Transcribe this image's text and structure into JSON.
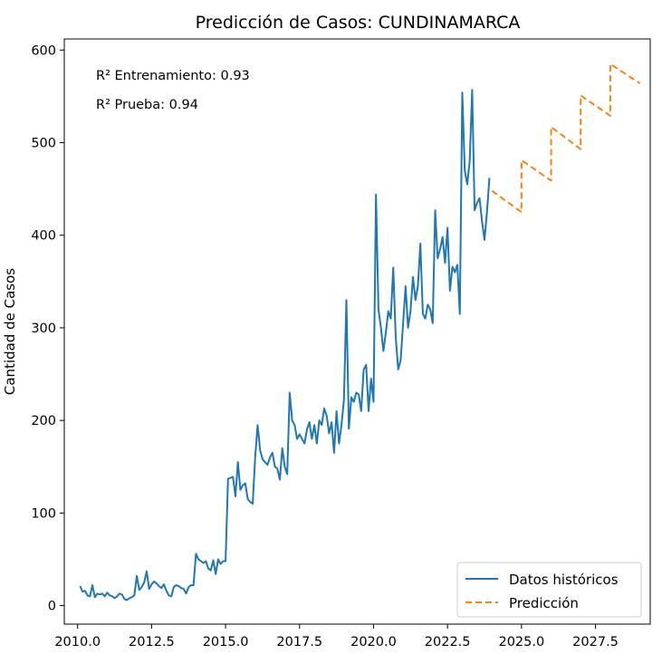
{
  "chart_data": {
    "type": "line",
    "title": "Predicción de Casos: CUNDINAMARCA",
    "xlabel": "",
    "ylabel": "Cantidad de Casos",
    "xlim": [
      2009.55,
      2029.35
    ],
    "ylim": [
      -20,
      612
    ],
    "x_ticks": [
      2010.0,
      2012.5,
      2015.0,
      2017.5,
      2020.0,
      2022.5,
      2025.0,
      2027.5
    ],
    "x_tick_labels": [
      "2010.0",
      "2012.5",
      "2015.0",
      "2017.5",
      "2020.0",
      "2022.5",
      "2025.0",
      "2027.5"
    ],
    "y_ticks": [
      0,
      100,
      200,
      300,
      400,
      500,
      600
    ],
    "y_tick_labels": [
      "0",
      "100",
      "200",
      "300",
      "400",
      "500",
      "600"
    ],
    "grid": false,
    "legend_position": "lower right",
    "annotations": [
      "R² Entrenamiento: 0.93",
      "R² Prueba: 0.94"
    ],
    "series": [
      {
        "name": "Datos históricos",
        "color": "#1f77b4",
        "style": "solid",
        "x_start": 2010.0833,
        "x_step": 0.08333,
        "values": [
          21,
          15,
          16,
          11,
          10,
          22,
          9,
          13,
          12,
          13,
          10,
          14,
          11,
          10,
          8,
          10,
          13,
          12,
          7,
          6,
          8,
          9,
          11,
          32,
          17,
          20,
          25,
          37,
          18,
          23,
          26,
          24,
          21,
          19,
          23,
          16,
          11,
          10,
          20,
          22,
          21,
          19,
          18,
          13,
          20,
          22,
          22,
          56,
          50,
          48,
          46,
          48,
          40,
          38,
          49,
          34,
          50,
          45,
          48,
          48,
          137,
          138,
          139,
          118,
          155,
          125,
          130,
          132,
          115,
          112,
          110,
          160,
          195,
          168,
          158,
          155,
          152,
          160,
          165,
          150,
          148,
          136,
          170,
          150,
          142,
          230,
          200,
          195,
          180,
          185,
          180,
          175,
          190,
          198,
          180,
          195,
          175,
          200,
          195,
          213,
          205,
          186,
          198,
          165,
          210,
          175,
          195,
          222,
          330,
          191,
          225,
          220,
          230,
          228,
          210,
          255,
          260,
          210,
          245,
          220,
          444,
          320,
          300,
          275,
          295,
          318,
          310,
          365,
          290,
          255,
          265,
          305,
          345,
          300,
          318,
          355,
          330,
          345,
          391,
          315,
          310,
          325,
          320,
          305,
          427,
          375,
          385,
          398,
          370,
          408,
          340,
          366,
          360,
          368,
          315,
          554,
          470,
          455,
          480,
          557,
          427,
          435,
          440,
          415,
          395,
          425,
          462
        ]
      },
      {
        "name": "Predicción",
        "color": "#ff7f0e",
        "style": "dashed",
        "x": [
          2024.0,
          2025.0,
          2025.0,
          2026.0,
          2026.0,
          2027.0,
          2027.0,
          2028.0,
          2028.0,
          2029.0
        ],
        "values": [
          448,
          425,
          481,
          459,
          517,
          493,
          551,
          529,
          585,
          564
        ]
      }
    ]
  }
}
